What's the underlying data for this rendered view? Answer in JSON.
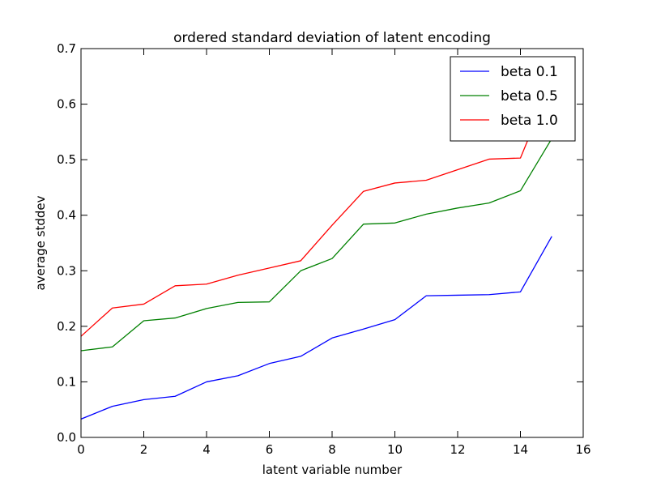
{
  "chart_data": {
    "type": "line",
    "title": "ordered standard deviation of latent encoding",
    "xlabel": "latent variable number",
    "ylabel": "average stddev",
    "xlim": [
      0,
      16
    ],
    "ylim": [
      0,
      0.7
    ],
    "xticks": [
      0,
      2,
      4,
      6,
      8,
      10,
      12,
      14,
      16
    ],
    "xtick_labels": [
      "0",
      "2",
      "4",
      "6",
      "8",
      "10",
      "12",
      "14",
      "16"
    ],
    "yticks": [
      0,
      0.1,
      0.2,
      0.3,
      0.4,
      0.5,
      0.6,
      0.7
    ],
    "ytick_labels": [
      "0.0",
      "0.1",
      "0.2",
      "0.3",
      "0.4",
      "0.5",
      "0.6",
      "0.7"
    ],
    "grid": false,
    "legend_position": "top-right",
    "x": [
      0,
      1,
      2,
      3,
      4,
      5,
      6,
      7,
      8,
      9,
      10,
      11,
      12,
      13,
      14,
      15
    ],
    "series": [
      {
        "name": "beta 0.1",
        "color": "#0000ff",
        "values": [
          0.033,
          0.056,
          0.068,
          0.074,
          0.1,
          0.111,
          0.133,
          0.146,
          0.179,
          0.195,
          0.212,
          0.255,
          0.256,
          0.257,
          0.262,
          0.362
        ]
      },
      {
        "name": "beta 0.5",
        "color": "#008000",
        "values": [
          0.156,
          0.163,
          0.21,
          0.215,
          0.232,
          0.243,
          0.244,
          0.3,
          0.322,
          0.384,
          0.386,
          0.402,
          0.413,
          0.422,
          0.444,
          0.538
        ]
      },
      {
        "name": "beta 1.0",
        "color": "#ff0000",
        "values": [
          0.182,
          0.233,
          0.24,
          0.273,
          0.276,
          0.292,
          0.305,
          0.318,
          0.382,
          0.443,
          0.458,
          0.463,
          0.482,
          0.501,
          0.503,
          0.64
        ]
      }
    ]
  }
}
